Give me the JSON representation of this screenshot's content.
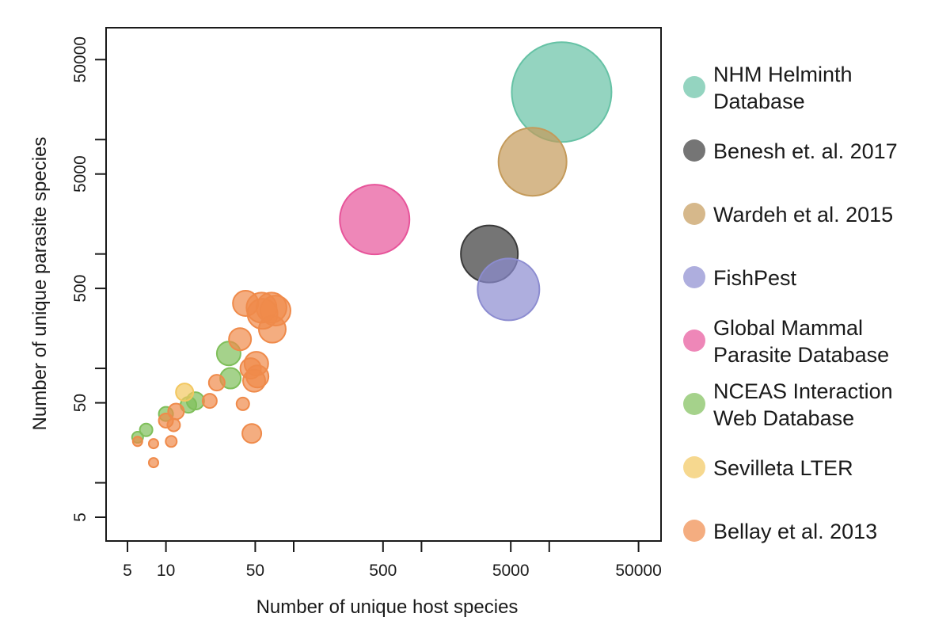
{
  "chart_data": {
    "type": "scatter",
    "xlabel": "Number of unique host species",
    "ylabel": "Number of unique parasite species",
    "x_scale": "log",
    "y_scale": "log",
    "xlim": [
      3.4,
      75000
    ],
    "ylim": [
      3.1,
      95000
    ],
    "x_ticks": [
      5,
      10,
      50,
      100,
      500,
      1000,
      5000,
      10000,
      50000
    ],
    "x_tick_labels": [
      "5",
      "10",
      "50",
      "",
      "500",
      "",
      "5000",
      "",
      "50000"
    ],
    "y_ticks": [
      5,
      10,
      50,
      100,
      500,
      1000,
      5000,
      10000,
      50000
    ],
    "y_tick_labels": [
      "5",
      "",
      "50",
      "",
      "500",
      "",
      "5000",
      "",
      "50000"
    ],
    "grid": false,
    "legend": "right",
    "series": [
      {
        "name": "NHM Helminth\n Database",
        "color": "#66c2a5",
        "points": [
          {
            "x": 12500,
            "y": 26000,
            "size": 63
          }
        ]
      },
      {
        "name": "Benesh et. al. 2017",
        "color": "#3a3a3a",
        "points": [
          {
            "x": 3400,
            "y": 1000,
            "size": 36
          }
        ]
      },
      {
        "name": "Wardeh et al. 2015",
        "color": "#c49a5a",
        "points": [
          {
            "x": 7400,
            "y": 6400,
            "size": 43
          }
        ]
      },
      {
        "name": "FishPest",
        "color": "#8c8cd0",
        "points": [
          {
            "x": 4800,
            "y": 490,
            "size": 39
          }
        ]
      },
      {
        "name": "Global Mammal\n Parasite Database",
        "color": "#e7549a",
        "points": [
          {
            "x": 430,
            "y": 2000,
            "size": 44
          }
        ]
      },
      {
        "name": "NCEAS Interaction\n Web Database",
        "color": "#7fbf5a",
        "points": [
          {
            "x": 31,
            "y": 135,
            "size": 15
          },
          {
            "x": 32,
            "y": 82,
            "size": 13
          },
          {
            "x": 17,
            "y": 52,
            "size": 11
          },
          {
            "x": 15,
            "y": 48,
            "size": 10
          },
          {
            "x": 10,
            "y": 40,
            "size": 9
          },
          {
            "x": 7,
            "y": 29,
            "size": 8
          },
          {
            "x": 6,
            "y": 25,
            "size": 7
          }
        ]
      },
      {
        "name": "Sevilleta LTER",
        "color": "#f2c760",
        "points": [
          {
            "x": 14,
            "y": 62,
            "size": 11
          }
        ]
      },
      {
        "name": "Bellay et al. 2013",
        "color": "#ef8a4a",
        "points": [
          {
            "x": 42,
            "y": 370,
            "size": 16
          },
          {
            "x": 56,
            "y": 340,
            "size": 19
          },
          {
            "x": 67,
            "y": 340,
            "size": 19
          },
          {
            "x": 72,
            "y": 320,
            "size": 19
          },
          {
            "x": 57,
            "y": 300,
            "size": 19
          },
          {
            "x": 68,
            "y": 220,
            "size": 17
          },
          {
            "x": 38,
            "y": 180,
            "size": 14
          },
          {
            "x": 51,
            "y": 110,
            "size": 15
          },
          {
            "x": 46,
            "y": 100,
            "size": 13
          },
          {
            "x": 52,
            "y": 85,
            "size": 14
          },
          {
            "x": 49,
            "y": 78,
            "size": 14
          },
          {
            "x": 25,
            "y": 75,
            "size": 10
          },
          {
            "x": 22,
            "y": 52,
            "size": 9
          },
          {
            "x": 40,
            "y": 49,
            "size": 8
          },
          {
            "x": 12,
            "y": 42,
            "size": 10
          },
          {
            "x": 10,
            "y": 35,
            "size": 9
          },
          {
            "x": 11.5,
            "y": 32,
            "size": 8
          },
          {
            "x": 47,
            "y": 27,
            "size": 12
          },
          {
            "x": 11,
            "y": 23,
            "size": 7
          },
          {
            "x": 8,
            "y": 22,
            "size": 6
          },
          {
            "x": 6,
            "y": 23,
            "size": 6
          },
          {
            "x": 8,
            "y": 15,
            "size": 6
          }
        ]
      }
    ]
  }
}
